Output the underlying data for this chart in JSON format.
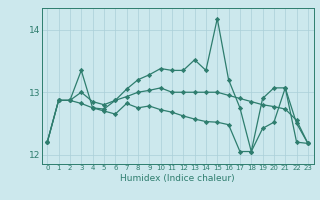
{
  "title": "",
  "xlabel": "Humidex (Indice chaleur)",
  "ylabel": "",
  "bg_color": "#cce8ed",
  "line_color": "#2e7d6e",
  "grid_color": "#aacfd8",
  "xlim": [
    -0.5,
    23.5
  ],
  "ylim": [
    11.85,
    14.35
  ],
  "xticks": [
    0,
    1,
    2,
    3,
    4,
    5,
    6,
    7,
    8,
    9,
    10,
    11,
    12,
    13,
    14,
    15,
    16,
    17,
    18,
    19,
    20,
    21,
    22,
    23
  ],
  "yticks": [
    12,
    13,
    14
  ],
  "line1": [
    12.2,
    12.87,
    12.87,
    13.35,
    12.75,
    12.73,
    12.87,
    13.05,
    13.2,
    13.28,
    13.38,
    13.35,
    13.35,
    13.52,
    13.35,
    14.18,
    13.2,
    12.75,
    12.05,
    12.9,
    13.07,
    13.07,
    12.5,
    12.18
  ],
  "line2": [
    12.2,
    12.87,
    12.87,
    13.0,
    12.85,
    12.8,
    12.87,
    12.93,
    13.0,
    13.03,
    13.07,
    13.0,
    13.0,
    13.0,
    13.0,
    13.0,
    12.95,
    12.9,
    12.85,
    12.8,
    12.77,
    12.73,
    12.55,
    12.18
  ],
  "line3": [
    12.2,
    12.87,
    12.87,
    12.82,
    12.75,
    12.7,
    12.65,
    12.82,
    12.75,
    12.78,
    12.72,
    12.68,
    12.62,
    12.57,
    12.53,
    12.52,
    12.48,
    12.05,
    12.05,
    12.42,
    12.52,
    13.07,
    12.2,
    12.18
  ]
}
